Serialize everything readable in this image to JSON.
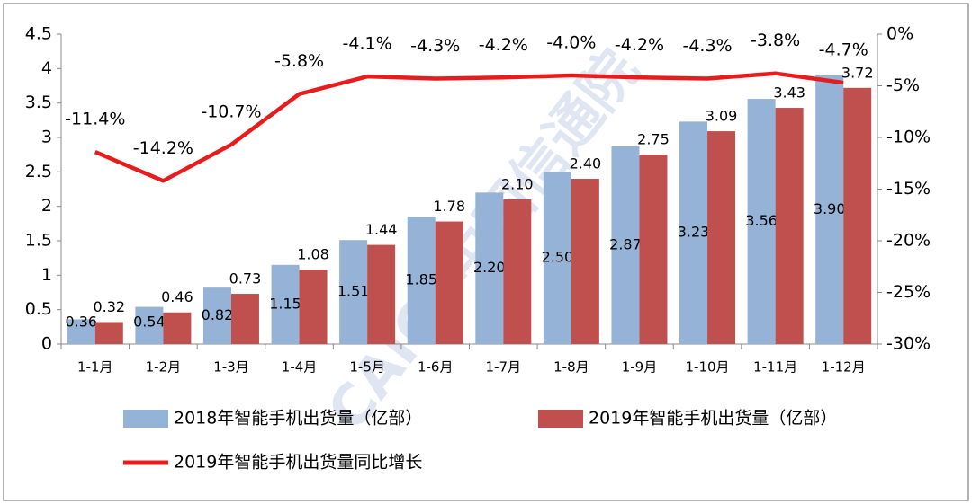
{
  "chart_data": {
    "type": "bar-line",
    "categories": [
      "1-1月",
      "1-2月",
      "1-3月",
      "1-4月",
      "1-5月",
      "1-6月",
      "1-7月",
      "1-8月",
      "1-9月",
      "1-10月",
      "1-11月",
      "1-12月"
    ],
    "series": [
      {
        "name": "2018年智能手机出货量（亿部）",
        "type": "bar",
        "color": "#95b3d7",
        "values": [
          0.36,
          0.54,
          0.82,
          1.15,
          1.51,
          1.85,
          2.2,
          2.5,
          2.87,
          3.23,
          3.56,
          3.9
        ],
        "value_labels": [
          "0.36",
          "0.54",
          "0.82",
          "1.15",
          "1.51",
          "1.85",
          "2.20",
          "2.50",
          "2.87",
          "3.23",
          "3.56",
          "3.90"
        ]
      },
      {
        "name": "2019年智能手机出货量（亿部）",
        "type": "bar",
        "color": "#c0504d",
        "values": [
          0.32,
          0.46,
          0.73,
          1.08,
          1.44,
          1.78,
          2.1,
          2.4,
          2.75,
          3.09,
          3.43,
          3.72
        ],
        "value_labels": [
          "0.32",
          "0.46",
          "0.73",
          "1.08",
          "1.44",
          "1.78",
          "2.10",
          "2.40",
          "2.75",
          "3.09",
          "3.43",
          "3.72"
        ]
      },
      {
        "name": "2019年智能手机出货量同比增长",
        "type": "line",
        "axis": "y2",
        "color": "#e81c1c",
        "values": [
          -11.4,
          -14.2,
          -10.7,
          -5.8,
          -4.1,
          -4.3,
          -4.2,
          -4.0,
          -4.2,
          -4.3,
          -3.8,
          -4.7
        ],
        "value_labels": [
          "-11.4%",
          "-14.2%",
          "-10.7%",
          "-5.8%",
          "-4.1%",
          "-4.3%",
          "-4.2%",
          "-4.0%",
          "-4.2%",
          "-4.3%",
          "-3.8%",
          "-4.7%"
        ]
      }
    ],
    "ylim": [
      0,
      4.5
    ],
    "yticks": [
      0,
      0.5,
      1,
      1.5,
      2,
      2.5,
      3,
      3.5,
      4,
      4.5
    ],
    "y2lim": [
      -30,
      0
    ],
    "y2ticks": [
      {
        "value": 0,
        "label": "0%"
      },
      {
        "value": -5,
        "label": "-5%"
      },
      {
        "value": -10,
        "label": "-10%"
      },
      {
        "value": -15,
        "label": "-15%"
      },
      {
        "value": -20,
        "label": "-20%"
      },
      {
        "value": -25,
        "label": "-25%"
      },
      {
        "value": -30,
        "label": "-30%"
      }
    ],
    "watermark": "CAICT中国信通院"
  }
}
